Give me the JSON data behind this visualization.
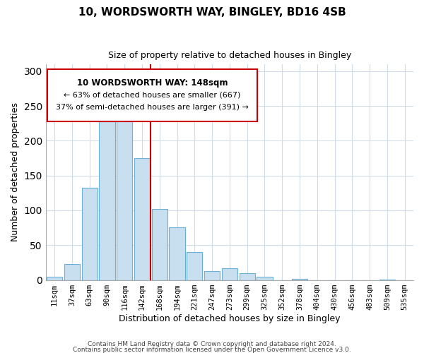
{
  "title": "10, WORDSWORTH WAY, BINGLEY, BD16 4SB",
  "subtitle": "Size of property relative to detached houses in Bingley",
  "xlabel": "Distribution of detached houses by size in Bingley",
  "ylabel": "Number of detached properties",
  "bar_labels": [
    "11sqm",
    "37sqm",
    "63sqm",
    "90sqm",
    "116sqm",
    "142sqm",
    "168sqm",
    "194sqm",
    "221sqm",
    "247sqm",
    "273sqm",
    "299sqm",
    "325sqm",
    "352sqm",
    "378sqm",
    "404sqm",
    "430sqm",
    "456sqm",
    "483sqm",
    "509sqm",
    "535sqm"
  ],
  "bar_values": [
    5,
    23,
    132,
    228,
    246,
    175,
    102,
    76,
    40,
    13,
    17,
    10,
    5,
    0,
    2,
    0,
    0,
    0,
    0,
    1,
    0
  ],
  "bar_color": "#c8dff0",
  "bar_edge_color": "#6aafd6",
  "vline_x": 5.5,
  "vline_color": "#cc0000",
  "ylim": [
    0,
    310
  ],
  "yticks": [
    0,
    50,
    100,
    150,
    200,
    250,
    300
  ],
  "annotation_title": "10 WORDSWORTH WAY: 148sqm",
  "annotation_line1": "← 63% of detached houses are smaller (667)",
  "annotation_line2": "37% of semi-detached houses are larger (391) →",
  "footer_line1": "Contains HM Land Registry data © Crown copyright and database right 2024.",
  "footer_line2": "Contains public sector information licensed under the Open Government Licence v3.0.",
  "background_color": "#ffffff",
  "grid_color": "#d0dce8"
}
